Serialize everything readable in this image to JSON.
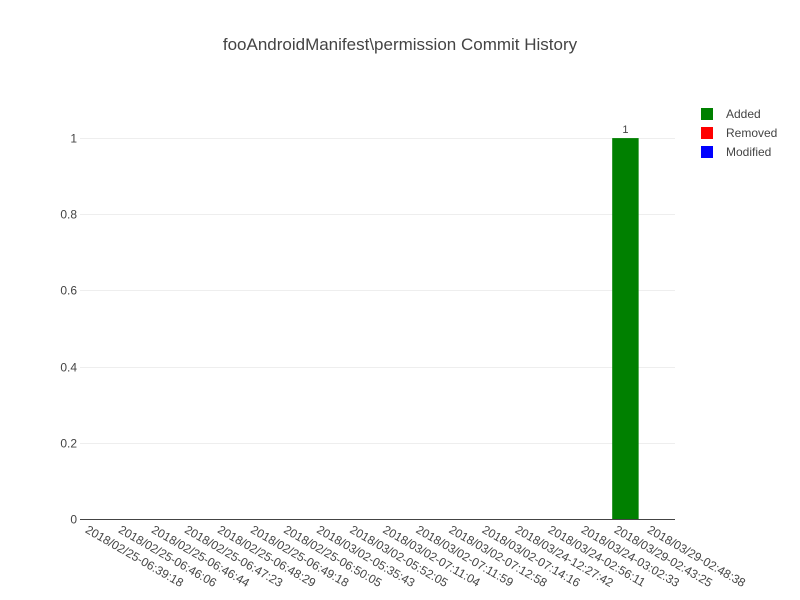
{
  "chart_data": {
    "type": "bar",
    "title": "fooAndroidManifest\\permission Commit History",
    "xlabel": "",
    "ylabel": "",
    "categories": [
      "2018/02/25-06:39:18",
      "2018/02/25-06:46:06",
      "2018/02/25-06:46:44",
      "2018/02/25-06:47:23",
      "2018/02/25-06:48:29",
      "2018/02/25-06:49:18",
      "2018/02/25-06:50:05",
      "2018/03/02-05:35:43",
      "2018/03/02-05:52:05",
      "2018/03/02-07:11:04",
      "2018/03/02-07:11:59",
      "2018/03/02-07:12:58",
      "2018/03/02-07:14:16",
      "2018/03/24-12:27:42",
      "2018/03/24-02:56:11",
      "2018/03/24-03:02:33",
      "2018/03/29-02:43:25",
      "2018/03/29-02:48:38"
    ],
    "series": [
      {
        "name": "Added",
        "color": "#008000",
        "values": [
          0,
          0,
          0,
          0,
          0,
          0,
          0,
          0,
          0,
          0,
          0,
          0,
          0,
          0,
          0,
          0,
          1,
          0
        ]
      },
      {
        "name": "Removed",
        "color": "#ff0000",
        "values": [
          0,
          0,
          0,
          0,
          0,
          0,
          0,
          0,
          0,
          0,
          0,
          0,
          0,
          0,
          0,
          0,
          0,
          0
        ]
      },
      {
        "name": "Modified",
        "color": "#0000ff",
        "values": [
          0,
          0,
          0,
          0,
          0,
          0,
          0,
          0,
          0,
          0,
          0,
          0,
          0,
          0,
          0,
          0,
          0,
          0
        ]
      }
    ],
    "data_labels": [
      {
        "category": "2018/03/29-02:43:25",
        "series": "Added",
        "text": "1"
      }
    ],
    "ylim": [
      0,
      1.1
    ],
    "yticks": [
      {
        "value": 0,
        "label": "0"
      },
      {
        "value": 0.2,
        "label": "0.2"
      },
      {
        "value": 0.4,
        "label": "0.4"
      },
      {
        "value": 0.6,
        "label": "0.6"
      },
      {
        "value": 0.8,
        "label": "0.8"
      },
      {
        "value": 1,
        "label": "1"
      }
    ],
    "grid": true,
    "legend": "top-right",
    "barmode": "stack"
  }
}
